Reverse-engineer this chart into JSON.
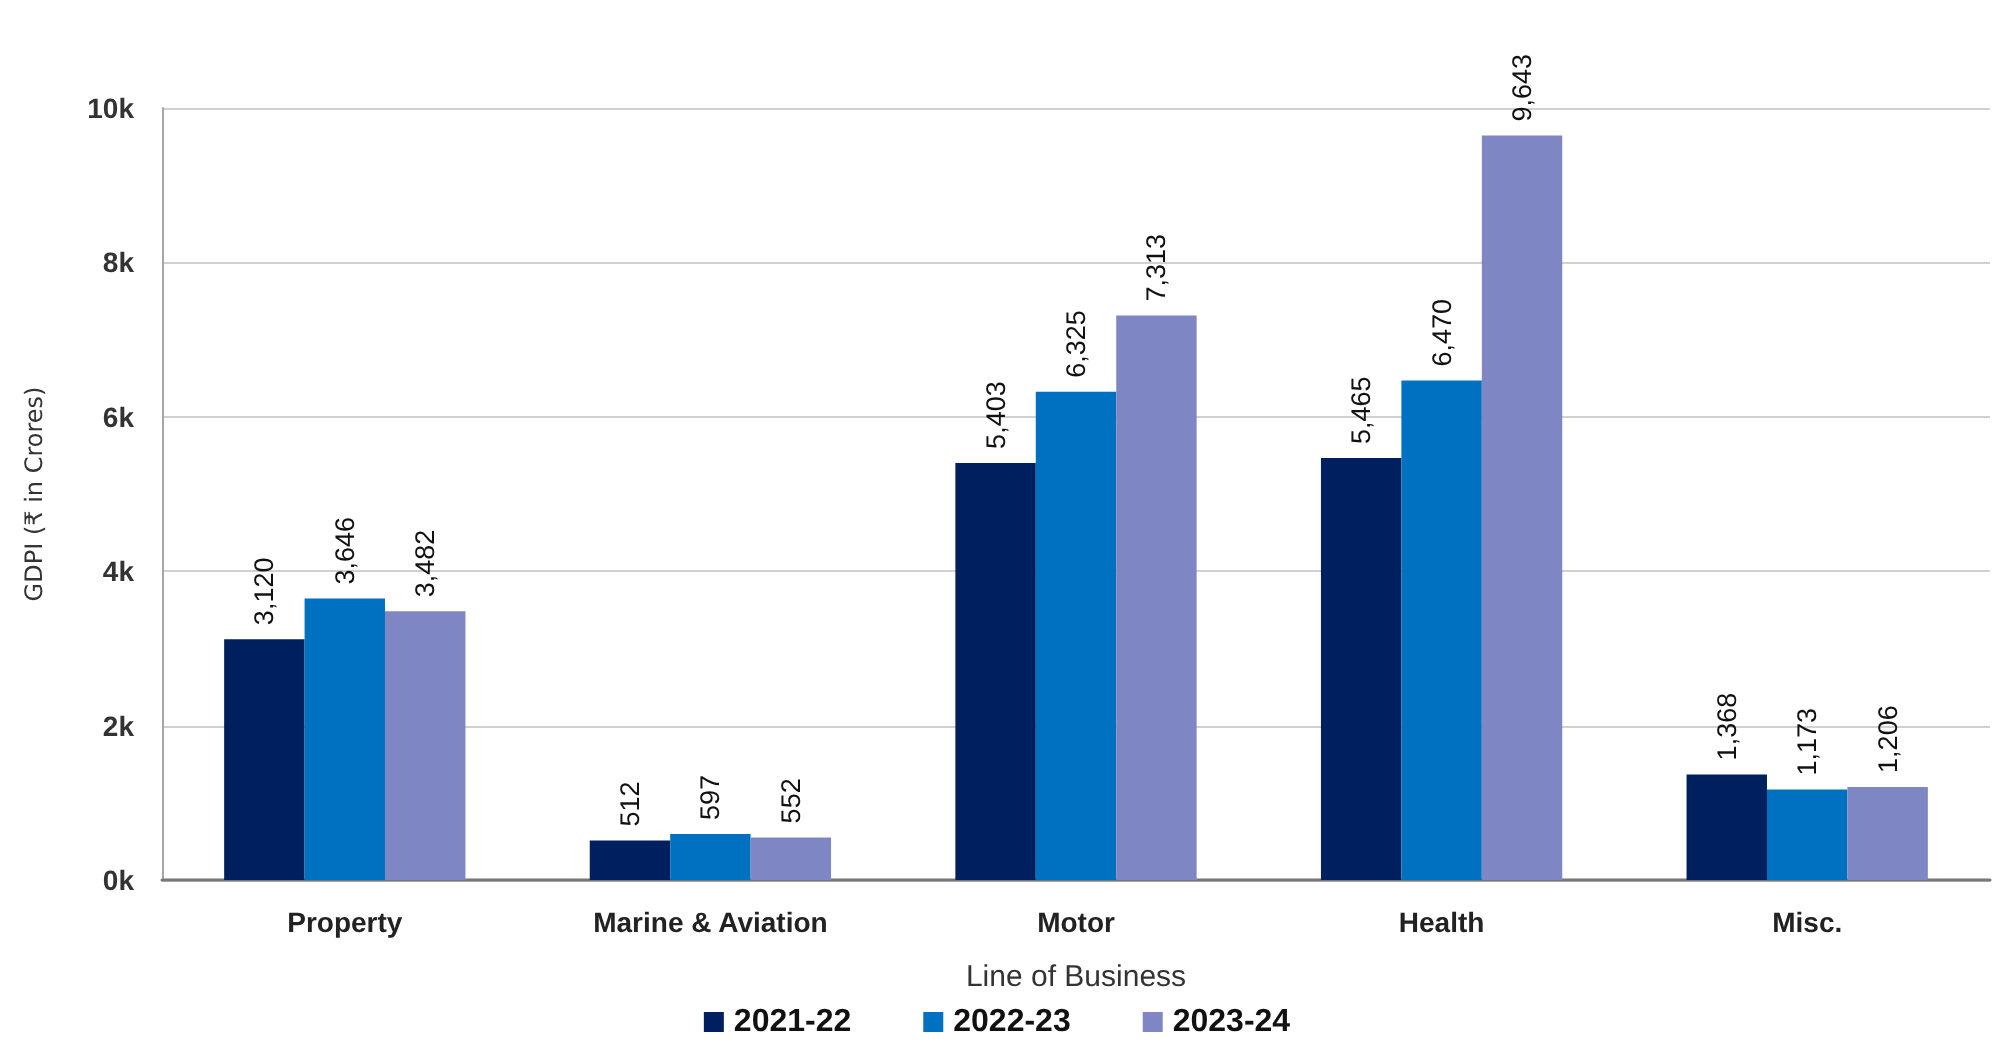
{
  "chart_data": {
    "type": "bar",
    "categories": [
      "Property",
      "Marine & Aviation",
      "Motor",
      "Health",
      "Misc."
    ],
    "series": [
      {
        "name": "2021-22",
        "color": "#001f5f",
        "values": [
          3120,
          512,
          5403,
          5465,
          1368
        ],
        "value_labels": [
          "3,120",
          "512",
          "5,403",
          "5,465",
          "1,368"
        ]
      },
      {
        "name": "2022-23",
        "color": "#0070c0",
        "values": [
          3646,
          597,
          6325,
          6470,
          1173
        ],
        "value_labels": [
          "3,646",
          "597",
          "6,325",
          "6,470",
          "1,173"
        ]
      },
      {
        "name": "2023-24",
        "color": "#7e87c3",
        "values": [
          3482,
          552,
          7313,
          9643,
          1206
        ],
        "value_labels": [
          "3,482",
          "552",
          "7,313",
          "9,643",
          "1,206"
        ]
      }
    ],
    "xlabel": "Line of Business",
    "ylabel": "GDPI (₹ in Crores)",
    "ylim": [
      0,
      10000
    ],
    "yticks": [
      {
        "value": 0,
        "label": "0k"
      },
      {
        "value": 2000,
        "label": "2k"
      },
      {
        "value": 4000,
        "label": "4k"
      },
      {
        "value": 6000,
        "label": "6k"
      },
      {
        "value": 8000,
        "label": "8k"
      },
      {
        "value": 10000,
        "label": "10k"
      }
    ],
    "grid": "y",
    "legend": "bottom"
  }
}
